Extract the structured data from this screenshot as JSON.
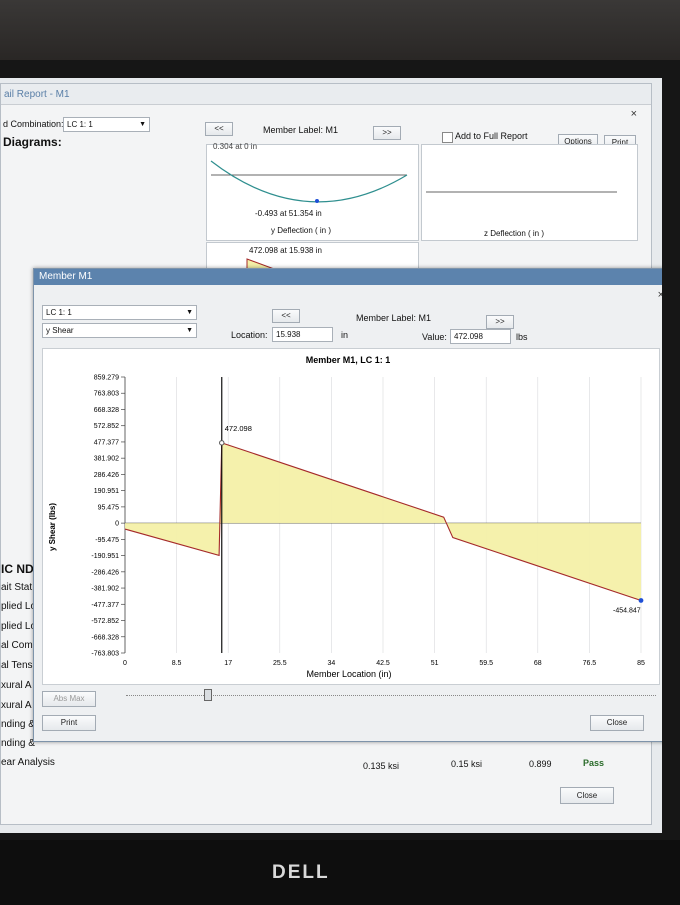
{
  "monitor": {
    "brand": "DELL"
  },
  "report": {
    "title": "ail Report - M1",
    "load_combination_label": "d Combination:",
    "load_combination_value": "LC 1: 1",
    "diagrams_label": "Diagrams:",
    "prev_label": "<<",
    "next_label": ">>",
    "member_label_text": "Member Label:  M1",
    "add_to_full_report": "Add to Full Report",
    "options_label": "Options",
    "print_label": "Print",
    "close_x": "×",
    "top_cut_text": "0.304 at 0 in",
    "y_deflection_value": "-0.493 at 51.354 in",
    "y_deflection_label": "y Deflection  ( in )",
    "z_deflection_label": "z Deflection  ( in )",
    "shear_max_text": "472.098 at 15.938 in",
    "left_list": [
      "IC ND",
      "ait Stat",
      "plied Lo",
      "plied Lo",
      "al Com",
      "al Tens",
      "xural A",
      "xural A",
      "nding &",
      "nding &",
      "ear Analysis"
    ],
    "bottom_values": [
      "0.135 ksi",
      "0.15 ksi",
      "0.899",
      "Pass"
    ],
    "close_label": "Close"
  },
  "dialog": {
    "title": "Member M1",
    "close_x": "×",
    "load_combination": "LC 1: 1",
    "diagram_type": "y Shear",
    "prev_label": "<<",
    "next_label": ">>",
    "member_label_text": "Member Label:  M1",
    "location_label": "Location:",
    "location_value": "15.938",
    "location_unit": "in",
    "value_label": "Value:",
    "value_value": "472.098",
    "value_unit": "lbs",
    "abs_max_label": "Abs Max",
    "print_label": "Print",
    "close_label": "Close"
  },
  "chart_data": {
    "type": "area",
    "title": "Member M1, LC 1: 1",
    "xlabel": "Member Location (in)",
    "ylabel": "y Shear (lbs)",
    "x_ticks": [
      "0",
      "8.5",
      "17",
      "25.5",
      "34",
      "42.5",
      "51",
      "59.5",
      "68",
      "76.5",
      "85"
    ],
    "y_ticks": [
      "859.279",
      "763.803",
      "668.328",
      "572.852",
      "477.377",
      "381.902",
      "286.426",
      "190.951",
      "95.475",
      "0",
      "-95.475",
      "-190.951",
      "-286.426",
      "-381.902",
      "-477.377",
      "-572.852",
      "-668.328",
      "-763.803"
    ],
    "xlim": [
      0,
      85
    ],
    "ylim": [
      -763.803,
      859.279
    ],
    "x": [
      0,
      15.5,
      15.938,
      52.5,
      54,
      85
    ],
    "values": [
      -35,
      -190,
      472.098,
      35,
      -85,
      -454.847
    ],
    "annotations": [
      "472.098",
      "-454.847"
    ],
    "cursor_x": 15.938,
    "colors": {
      "line": "#a52a2a",
      "fill": "#f4f0a8",
      "cursor": "#111111",
      "marker": "#1e4fd6"
    }
  }
}
